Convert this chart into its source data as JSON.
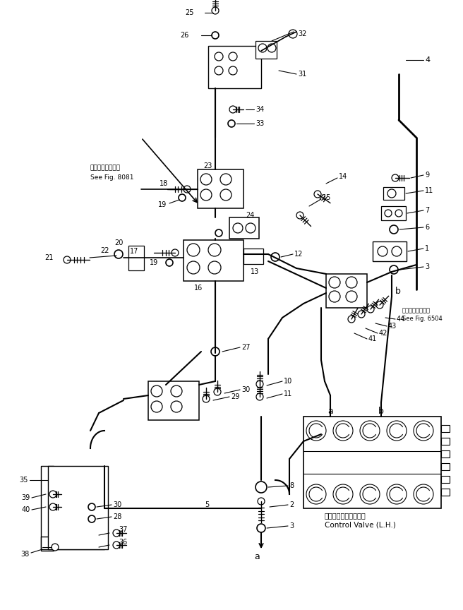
{
  "bg_color": "#ffffff",
  "line_color": "#000000",
  "figsize": [
    6.56,
    8.64
  ],
  "dpi": 100,
  "see8081_line1": "第８０８１図参照",
  "see8081_line2": "See Fig. 8081",
  "see6504_line1": "第６５０４図参照",
  "see6504_line2": "See Fig. 6504",
  "ctrl_valve_jp": "コントロールバルブ左",
  "ctrl_valve_en": "Control Valve (L.H.)"
}
